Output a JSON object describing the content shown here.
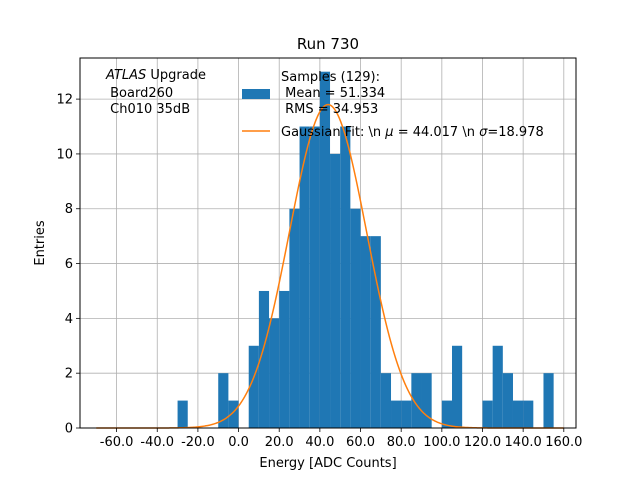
{
  "chart_data": {
    "type": "bar",
    "title": "Run 730",
    "xlabel": "Energy [ADC Counts]",
    "ylabel": "Entries",
    "xlim": [
      -78,
      166
    ],
    "ylim": [
      0,
      13.5
    ],
    "grid": true,
    "x_ticks": [
      -60.0,
      -40.0,
      -20.0,
      0.0,
      20.0,
      40.0,
      60.0,
      80.0,
      100.0,
      120.0,
      140.0,
      160.0
    ],
    "x_tick_labels": [
      "-60.0",
      "-40.0",
      "-20.0",
      "0.0",
      "20.0",
      "40.0",
      "60.0",
      "80.0",
      "100.0",
      "120.0",
      "140.0",
      "160.0"
    ],
    "y_ticks": [
      0,
      2,
      4,
      6,
      8,
      10,
      12
    ],
    "y_tick_labels": [
      "0",
      "2",
      "4",
      "6",
      "8",
      "10",
      "12"
    ],
    "bin_width": 5,
    "histogram": {
      "name": "Samples (129):",
      "color": "#1f77b4",
      "bin_left_edges": [
        -30,
        -10,
        -5,
        5,
        10,
        15,
        20,
        25,
        30,
        35,
        40,
        45,
        50,
        55,
        60,
        65,
        70,
        75,
        80,
        85,
        90,
        100,
        105,
        120,
        125,
        130,
        135,
        140,
        150
      ],
      "counts": [
        1,
        2,
        1,
        3,
        5,
        4,
        5,
        8,
        11,
        11,
        13,
        10,
        11,
        8,
        7,
        7,
        2,
        1,
        1,
        2,
        2,
        1,
        3,
        1,
        3,
        2,
        1,
        1,
        2
      ]
    },
    "gaussian_fit": {
      "name": "Gaussian Fit: \\n $\\mu$ = 44.017 \\n $\\sigma$=18.978",
      "color": "#ff7f0e",
      "mu": 44.017,
      "sigma": 18.978,
      "amplitude": 11.8,
      "x_range": [
        -70,
        160
      ]
    },
    "legend": {
      "placement": "top-right",
      "hist_label_lines": [
        "Samples (129):",
        " Mean = 51.334",
        " RMS = 34.953"
      ],
      "fit_label_prefix": "Gaussian Fit: \\n ",
      "fit_mu_symbol": "μ",
      "fit_label_mid": " = 44.017 \\n ",
      "fit_sigma_symbol": "σ",
      "fit_label_suffix": "=18.978"
    },
    "annotation": {
      "italic": "ATLAS",
      "line1_rest": " Upgrade",
      "line2": " Board260",
      "line3": " Ch010 35dB"
    }
  }
}
